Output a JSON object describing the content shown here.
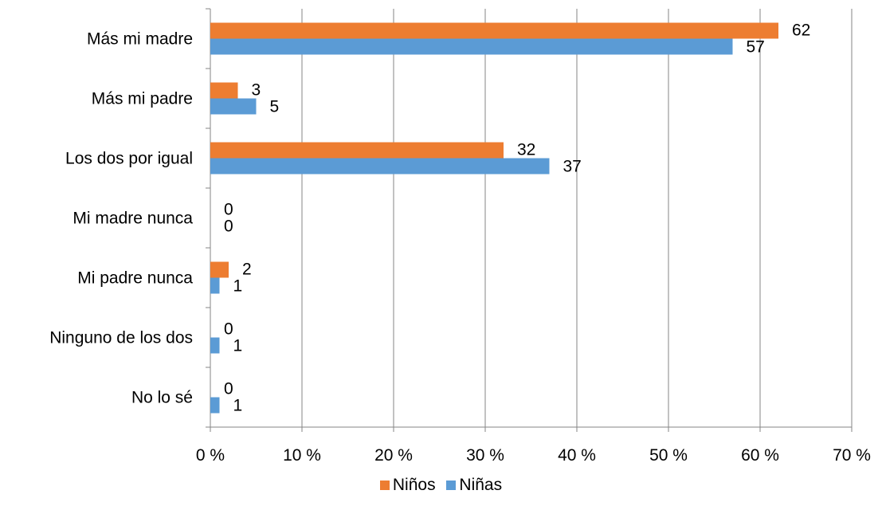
{
  "chart_data": {
    "type": "bar",
    "orientation": "horizontal",
    "categories": [
      "Más mi madre",
      "Más mi padre",
      "Los dos por igual",
      "Mi madre nunca",
      "Mi padre nunca",
      "Ninguno de los dos",
      "No lo sé"
    ],
    "series": [
      {
        "name": "Niños",
        "color": "#ED7D31",
        "values": [
          62,
          3,
          32,
          0,
          2,
          0,
          0
        ]
      },
      {
        "name": "Niñas",
        "color": "#5B9BD5",
        "values": [
          57,
          5,
          37,
          0,
          1,
          1,
          1
        ]
      }
    ],
    "x_tick_labels": [
      "0 %",
      "10 %",
      "20 %",
      "30 %",
      "40 %",
      "50 %",
      "60 %",
      "70 %"
    ],
    "xlim": [
      0,
      70
    ],
    "grid": true,
    "legend_position": "bottom",
    "data_labels": true
  }
}
